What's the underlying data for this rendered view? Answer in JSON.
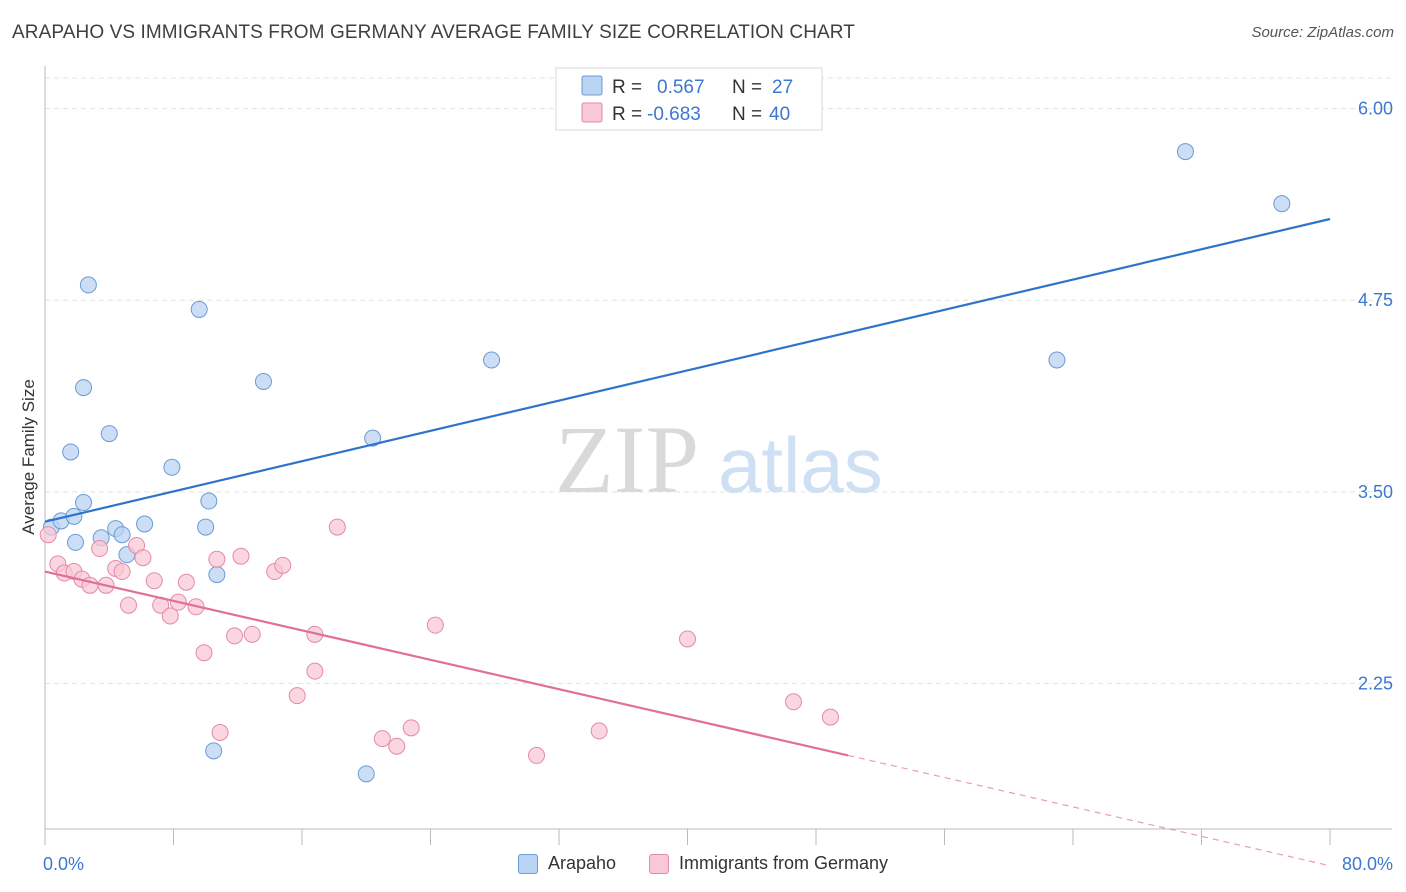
{
  "title": "ARAPAHO VS IMMIGRANTS FROM GERMANY AVERAGE FAMILY SIZE CORRELATION CHART",
  "source": "Source: ZipAtlas.com",
  "watermark": {
    "zip": "ZIP",
    "atlas": "atlas"
  },
  "colors": {
    "blue_fill": "#b9d3f2",
    "blue_stroke": "#6b9ad6",
    "blue_line": "#2f74c9",
    "pink_fill": "#f8c8d6",
    "pink_stroke": "#e58aa7",
    "pink_line": "#e07099",
    "value_text": "#3d78d0",
    "grid": "#e3e3e3",
    "axis": "#bbbbbb"
  },
  "stats": [
    {
      "r_label": "R =",
      "r_value": "0.567",
      "n_label": "N =",
      "n_value": "27"
    },
    {
      "r_label": "R =",
      "r_value": "-0.683",
      "n_label": "N =",
      "n_value": "40"
    }
  ],
  "chart_data": {
    "type": "scatter",
    "title": "ARAPAHO VS IMMIGRANTS FROM GERMANY AVERAGE FAMILY SIZE CORRELATION CHART",
    "xlabel": "",
    "ylabel": "Average Family Size",
    "xlim": [
      0,
      80
    ],
    "ylim": [
      1.3,
      6.2
    ],
    "x_tick_labels": [
      "0.0%",
      "80.0%"
    ],
    "y_ticks": [
      2.25,
      3.5,
      4.75,
      6.0
    ],
    "y_tick_labels": [
      "2.25",
      "3.50",
      "4.75",
      "6.00"
    ],
    "legend_position": "bottom",
    "series": [
      {
        "name": "Arapaho",
        "color": "#b9d3f2",
        "points": [
          [
            0.4,
            3.27
          ],
          [
            1.0,
            3.31
          ],
          [
            1.6,
            3.76
          ],
          [
            1.8,
            3.34
          ],
          [
            1.9,
            3.17
          ],
          [
            2.4,
            3.43
          ],
          [
            2.4,
            4.18
          ],
          [
            2.7,
            4.85
          ],
          [
            4.0,
            3.88
          ],
          [
            3.5,
            3.2
          ],
          [
            4.4,
            3.26
          ],
          [
            4.8,
            3.22
          ],
          [
            5.1,
            3.09
          ],
          [
            6.2,
            3.29
          ],
          [
            7.9,
            3.66
          ],
          [
            10.0,
            3.27
          ],
          [
            10.2,
            3.44
          ],
          [
            10.7,
            2.96
          ],
          [
            9.6,
            4.69
          ],
          [
            13.6,
            4.22
          ],
          [
            10.5,
            1.81
          ],
          [
            20.4,
            3.85
          ],
          [
            20.0,
            1.66
          ],
          [
            27.8,
            4.36
          ],
          [
            63.0,
            4.36
          ],
          [
            71.0,
            5.72
          ],
          [
            77.0,
            5.38
          ]
        ],
        "trend": {
          "x": [
            0,
            80
          ],
          "y": [
            3.305,
            5.28
          ],
          "style": "solid"
        }
      },
      {
        "name": "Immigrants from Germany",
        "color": "#f8c8d6",
        "points": [
          [
            0.2,
            3.22
          ],
          [
            0.8,
            3.03
          ],
          [
            1.2,
            2.97
          ],
          [
            1.8,
            2.98
          ],
          [
            2.3,
            2.93
          ],
          [
            2.8,
            2.89
          ],
          [
            3.4,
            3.13
          ],
          [
            3.8,
            2.89
          ],
          [
            4.4,
            3.0
          ],
          [
            4.8,
            2.98
          ],
          [
            5.2,
            2.76
          ],
          [
            5.7,
            3.15
          ],
          [
            6.1,
            3.07
          ],
          [
            6.8,
            2.92
          ],
          [
            7.2,
            2.76
          ],
          [
            7.8,
            2.69
          ],
          [
            8.3,
            2.78
          ],
          [
            8.8,
            2.91
          ],
          [
            9.4,
            2.75
          ],
          [
            9.9,
            2.45
          ],
          [
            10.7,
            3.06
          ],
          [
            10.9,
            1.93
          ],
          [
            11.8,
            2.56
          ],
          [
            12.2,
            3.08
          ],
          [
            12.9,
            2.57
          ],
          [
            14.3,
            2.98
          ],
          [
            14.8,
            3.02
          ],
          [
            15.7,
            2.17
          ],
          [
            16.8,
            2.57
          ],
          [
            16.8,
            2.33
          ],
          [
            18.2,
            3.27
          ],
          [
            21.0,
            1.89
          ],
          [
            21.9,
            1.84
          ],
          [
            22.8,
            1.96
          ],
          [
            24.3,
            2.63
          ],
          [
            30.6,
            1.78
          ],
          [
            34.5,
            1.94
          ],
          [
            40.0,
            2.54
          ],
          [
            46.6,
            2.13
          ],
          [
            48.9,
            2.03
          ]
        ],
        "trend": {
          "x": [
            0,
            50
          ],
          "y": [
            2.98,
            1.78
          ],
          "style": "solid"
        },
        "trend_extension": {
          "x": [
            50,
            80
          ],
          "y": [
            1.78,
            1.06
          ],
          "style": "dashed"
        }
      }
    ]
  },
  "legend": [
    "Arapaho",
    "Immigrants from Germany"
  ]
}
